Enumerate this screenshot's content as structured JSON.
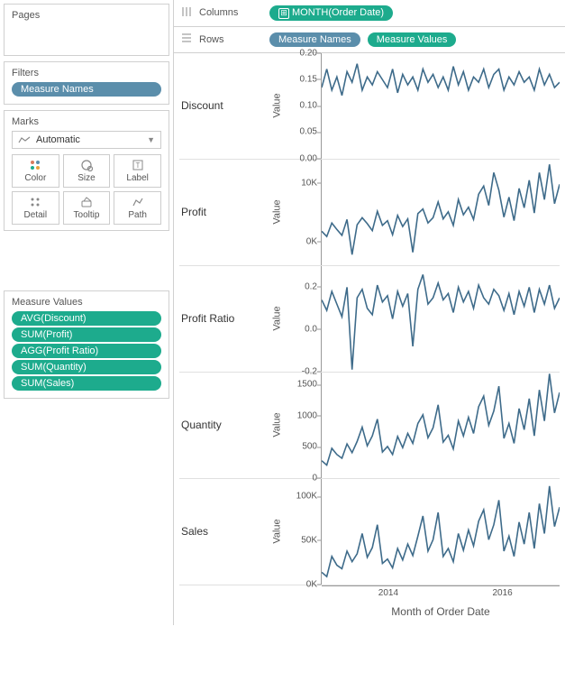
{
  "sidebar": {
    "pages_title": "Pages",
    "filters_title": "Filters",
    "filter_pill": "Measure Names",
    "marks_title": "Marks",
    "marks_dropdown": "Automatic",
    "mark_buttons": [
      {
        "label": "Color"
      },
      {
        "label": "Size"
      },
      {
        "label": "Label"
      },
      {
        "label": "Detail"
      },
      {
        "label": "Tooltip"
      },
      {
        "label": "Path"
      }
    ],
    "measure_values_title": "Measure Values",
    "measure_pills": [
      "AVG(Discount)",
      "SUM(Profit)",
      "AGG(Profit Ratio)",
      "SUM(Quantity)",
      "SUM(Sales)"
    ]
  },
  "shelves": {
    "columns_label": "Columns",
    "rows_label": "Rows",
    "columns_pill": "MONTH(Order Date)",
    "rows_pills": [
      "Measure Names",
      "Measure Values"
    ]
  },
  "style": {
    "line_color": "#3e6b8a",
    "pill_blue": "#5b8eab",
    "pill_teal": "#1dab8d",
    "axis_color": "#999",
    "grid_border": "#d0d0d0"
  },
  "xaxis": {
    "title": "Month of Order Date",
    "ticks": [
      {
        "label": "2014",
        "pos": 0.28
      },
      {
        "label": "2016",
        "pos": 0.76
      }
    ],
    "value_label": "Value"
  },
  "panels": [
    {
      "name": "Discount",
      "ymin": 0.0,
      "ymax": 0.2,
      "ticks": [
        {
          "v": 0.0,
          "l": "0.00"
        },
        {
          "v": 0.05,
          "l": "0.05"
        },
        {
          "v": 0.1,
          "l": "0.10"
        },
        {
          "v": 0.15,
          "l": "0.15"
        },
        {
          "v": 0.2,
          "l": "0.20"
        }
      ],
      "values": [
        0.135,
        0.17,
        0.13,
        0.155,
        0.12,
        0.165,
        0.145,
        0.18,
        0.13,
        0.155,
        0.14,
        0.165,
        0.15,
        0.135,
        0.17,
        0.125,
        0.16,
        0.14,
        0.155,
        0.13,
        0.17,
        0.145,
        0.16,
        0.135,
        0.155,
        0.13,
        0.175,
        0.14,
        0.165,
        0.13,
        0.155,
        0.145,
        0.17,
        0.135,
        0.16,
        0.17,
        0.13,
        0.155,
        0.14,
        0.165,
        0.145,
        0.155,
        0.13,
        0.17,
        0.14,
        0.16,
        0.135,
        0.145
      ]
    },
    {
      "name": "Profit",
      "ymin": -4000,
      "ymax": 14000,
      "ticks": [
        {
          "v": 0,
          "l": "0K"
        },
        {
          "v": 10000,
          "l": "10K"
        }
      ],
      "values": [
        1800,
        900,
        3200,
        2100,
        1100,
        3800,
        -2200,
        2900,
        4100,
        3100,
        1900,
        5200,
        2800,
        3600,
        1200,
        4500,
        2600,
        3900,
        -1800,
        4800,
        5600,
        3200,
        4100,
        6800,
        3900,
        5100,
        2800,
        7200,
        4600,
        5900,
        3800,
        8100,
        9500,
        6200,
        11800,
        8800,
        4200,
        7600,
        3600,
        9100,
        5800,
        10500,
        4900,
        11800,
        7200,
        13200,
        6500,
        9800
      ]
    },
    {
      "name": "Profit Ratio",
      "ymin": -0.2,
      "ymax": 0.3,
      "ticks": [
        {
          "v": -0.2,
          "l": "-0.2"
        },
        {
          "v": 0.0,
          "l": "0.0"
        },
        {
          "v": 0.2,
          "l": "0.2"
        }
      ],
      "values": [
        0.14,
        0.09,
        0.18,
        0.12,
        0.06,
        0.2,
        -0.19,
        0.15,
        0.19,
        0.1,
        0.07,
        0.21,
        0.13,
        0.16,
        0.05,
        0.18,
        0.11,
        0.17,
        -0.08,
        0.19,
        0.26,
        0.12,
        0.15,
        0.22,
        0.14,
        0.17,
        0.08,
        0.2,
        0.13,
        0.18,
        0.1,
        0.21,
        0.15,
        0.12,
        0.19,
        0.16,
        0.09,
        0.17,
        0.07,
        0.18,
        0.11,
        0.2,
        0.08,
        0.19,
        0.12,
        0.21,
        0.1,
        0.15
      ]
    },
    {
      "name": "Quantity",
      "ymin": 0,
      "ymax": 1700,
      "ticks": [
        {
          "v": 0,
          "l": "0"
        },
        {
          "v": 500,
          "l": "500"
        },
        {
          "v": 1000,
          "l": "1000"
        },
        {
          "v": 1500,
          "l": "1500"
        }
      ],
      "values": [
        280,
        210,
        480,
        380,
        320,
        550,
        410,
        590,
        820,
        520,
        680,
        950,
        420,
        510,
        380,
        670,
        490,
        720,
        560,
        880,
        1020,
        650,
        810,
        1180,
        580,
        690,
        470,
        920,
        680,
        980,
        720,
        1150,
        1320,
        850,
        1080,
        1480,
        640,
        880,
        560,
        1120,
        780,
        1280,
        680,
        1420,
        920,
        1680,
        1050,
        1380
      ]
    },
    {
      "name": "Sales",
      "ymin": 0,
      "ymax": 120000,
      "ticks": [
        {
          "v": 0,
          "l": "0K"
        },
        {
          "v": 50000,
          "l": "50K"
        },
        {
          "v": 100000,
          "l": "100K"
        }
      ],
      "values": [
        14000,
        9000,
        32000,
        22000,
        18000,
        38000,
        26000,
        35000,
        58000,
        31000,
        42000,
        68000,
        24000,
        29000,
        19000,
        41000,
        28000,
        46000,
        33000,
        55000,
        78000,
        38000,
        51000,
        82000,
        32000,
        41000,
        26000,
        58000,
        39000,
        62000,
        44000,
        72000,
        85000,
        51000,
        68000,
        96000,
        38000,
        55000,
        32000,
        71000,
        46000,
        82000,
        41000,
        92000,
        58000,
        112000,
        66000,
        88000
      ]
    }
  ]
}
